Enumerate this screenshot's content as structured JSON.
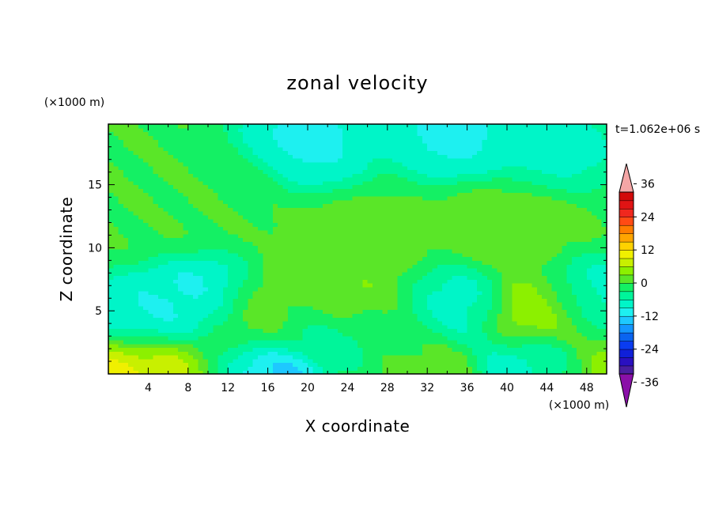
{
  "chart_data": {
    "type": "heatmap",
    "title": "zonal velocity",
    "xlabel": "X coordinate",
    "ylabel": "Z coordinate",
    "x_unit": "(×1000 m)",
    "y_unit": "(×1000 m)",
    "time_label": "t=1.062e+06 s",
    "xlim": [
      0,
      50
    ],
    "ylim": [
      0,
      19.8
    ],
    "x_ticks": [
      "4",
      "8",
      "12",
      "16",
      "20",
      "24",
      "28",
      "32",
      "36",
      "40",
      "44",
      "48"
    ],
    "y_ticks": [
      "5",
      "10",
      "15"
    ],
    "colorbar": {
      "levels": [
        -42,
        -39,
        -36,
        -33,
        -30,
        -27,
        -24,
        -21,
        -18,
        -15,
        -12,
        -9,
        -6,
        -3,
        0,
        3,
        6,
        9,
        12,
        15,
        18,
        21,
        24,
        27,
        30,
        33,
        36,
        39,
        42
      ],
      "tick_labels": [
        "36",
        "24",
        "12",
        "0",
        "-12",
        "-24",
        "-36"
      ],
      "tick_values": [
        36,
        24,
        12,
        0,
        -12,
        -24,
        -36
      ],
      "colors": [
        "#4a1ea0",
        "#2a10c0",
        "#1020d8",
        "#0a3cf0",
        "#0a64f0",
        "#1496ff",
        "#1ec8ff",
        "#1ef0f0",
        "#00f5c8",
        "#00f59a",
        "#14f064",
        "#5ae628",
        "#8cf000",
        "#c8f000",
        "#f0f000",
        "#ffd200",
        "#ffa500",
        "#ff7d00",
        "#ff4b14",
        "#f0281e",
        "#e01414",
        "#d20a0a"
      ],
      "over_color": "#f4a6a6",
      "under_color": "#8a10a8"
    },
    "field_centers": [
      {
        "x": 2,
        "z": 0.3,
        "v": 10
      },
      {
        "x": 4,
        "z": 4.5,
        "v": -9
      },
      {
        "x": 9,
        "z": 0.3,
        "v": 8
      },
      {
        "x": 10,
        "z": 5.5,
        "v": -11
      },
      {
        "x": 14,
        "z": 0.3,
        "v": -16
      },
      {
        "x": 15,
        "z": 4.5,
        "v": 7
      },
      {
        "x": 20,
        "z": 4,
        "v": -7
      },
      {
        "x": 22,
        "z": 6,
        "v": 4
      },
      {
        "x": 26,
        "z": 3,
        "v": -7
      },
      {
        "x": 26,
        "z": 5,
        "v": 4
      },
      {
        "x": 30,
        "z": 1.5,
        "v": 3
      },
      {
        "x": 34,
        "z": 5,
        "v": -8
      },
      {
        "x": 44,
        "z": 4.5,
        "v": 8
      },
      {
        "x": 44,
        "z": 1,
        "v": -10
      },
      {
        "x": 49,
        "z": 0.5,
        "v": 7
      },
      {
        "x": 49,
        "z": 5.5,
        "v": -9
      },
      {
        "x": 2,
        "z": 15,
        "v": 0
      },
      {
        "x": 10,
        "z": 15,
        "v": 0
      },
      {
        "x": 20,
        "z": 18.5,
        "v": -10
      },
      {
        "x": 35,
        "z": 19,
        "v": -10
      },
      {
        "x": 45,
        "z": 18,
        "v": -7
      },
      {
        "x": 25,
        "z": 10,
        "v": 1
      },
      {
        "x": 40,
        "z": 12,
        "v": 1
      }
    ]
  }
}
